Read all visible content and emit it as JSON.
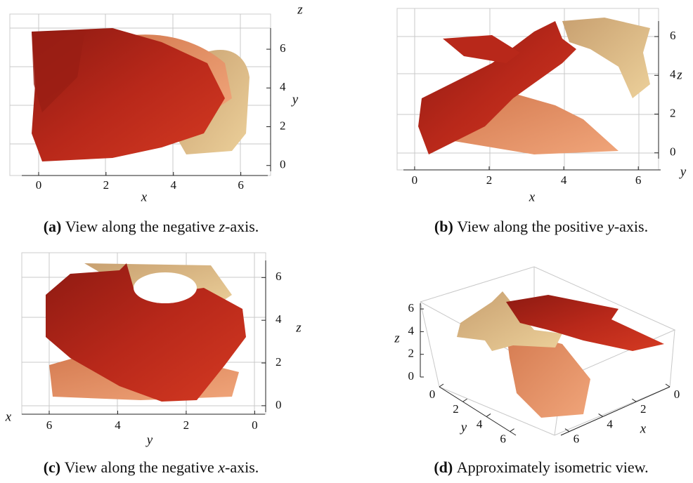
{
  "chart_data": [
    {
      "type": "surface3d",
      "caption": {
        "label": "(a)",
        "text": [
          "View along the negative ",
          "z",
          "-axis."
        ]
      },
      "axes": [
        {
          "label": "x",
          "lim": [
            -0.5,
            6.8
          ],
          "ticks": [
            0,
            2,
            4,
            6
          ]
        },
        {
          "label": "y",
          "lim": [
            -0.3,
            6.8
          ],
          "ticks": [
            0,
            2,
            4,
            6
          ]
        },
        {
          "label": "z"
        }
      ]
    },
    {
      "type": "surface3d",
      "caption": {
        "label": "(b)",
        "text": [
          "View along the positive ",
          "y",
          "-axis."
        ]
      },
      "axes": [
        {
          "label": "x",
          "lim": [
            -0.3,
            6.6
          ],
          "ticks": [
            0,
            2,
            4,
            6
          ]
        },
        {
          "label": "z",
          "lim": [
            -0.3,
            6.8
          ],
          "ticks": [
            0,
            2,
            4,
            6
          ]
        },
        {
          "label": "y"
        }
      ]
    },
    {
      "type": "surface3d",
      "caption": {
        "label": "(c)",
        "text": [
          "View along the negative ",
          "x",
          "-axis."
        ]
      },
      "axes": [
        {
          "label": "y",
          "lim": [
            6.8,
            -0.3
          ],
          "ticks": [
            6,
            4,
            2,
            0
          ]
        },
        {
          "label": "z",
          "lim": [
            -0.3,
            6.8
          ],
          "ticks": [
            0,
            2,
            4,
            6
          ]
        },
        {
          "label": "x"
        }
      ]
    },
    {
      "type": "surface3d",
      "caption": {
        "label": "(d)",
        "text": [
          "Approximately isometric view."
        ]
      },
      "axes": [
        {
          "label": "z",
          "lim": [
            0,
            6.5
          ],
          "ticks": [
            0,
            2,
            4,
            6
          ]
        },
        {
          "label": "y",
          "lim": [
            0,
            6.5
          ],
          "ticks": [
            0,
            2,
            4,
            6
          ]
        },
        {
          "label": "x",
          "lim": [
            0,
            6.5
          ],
          "ticks": [
            0,
            2,
            4,
            6
          ]
        }
      ]
    }
  ]
}
